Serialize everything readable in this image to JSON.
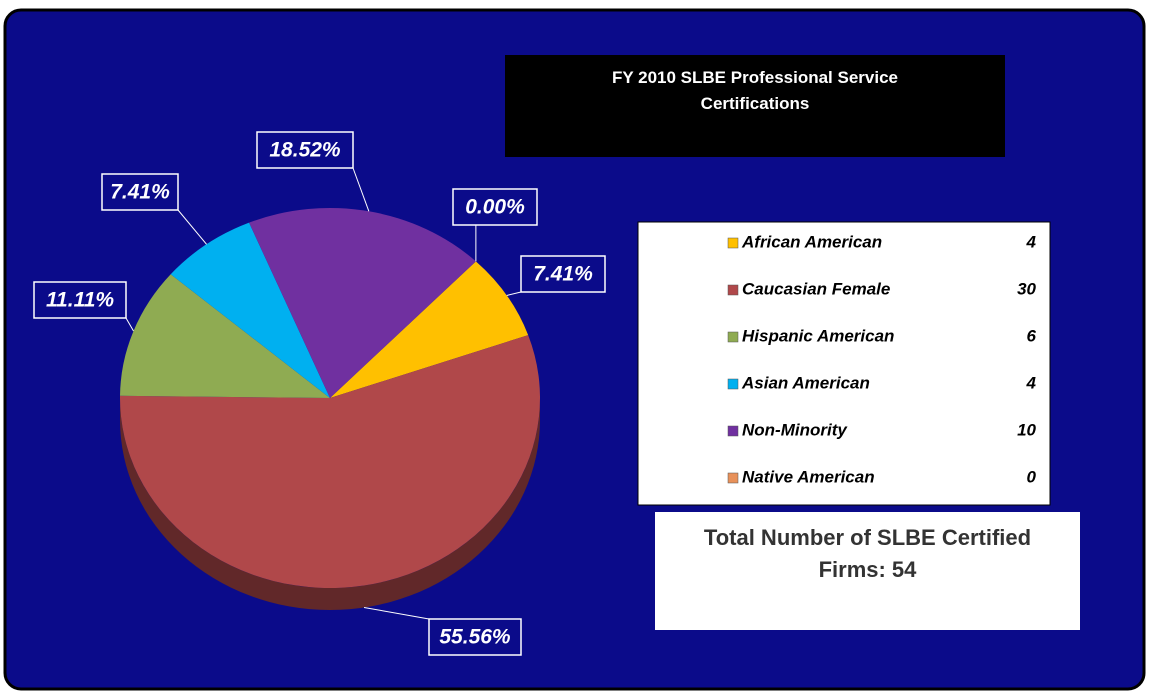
{
  "chart_data": {
    "type": "pie",
    "title": "FY 2010 SLBE Professional Service Certifications",
    "categories": [
      "African American",
      "Caucasian Female",
      "Hispanic American",
      "Asian American",
      "Non-Minority",
      "Native American"
    ],
    "values": [
      7.41,
      55.56,
      11.11,
      7.41,
      18.52,
      0.0
    ],
    "value_labels": [
      "7.41%",
      "55.56%",
      "11.11%",
      "7.41%",
      "18.52%",
      "0.00%"
    ],
    "counts": [
      4,
      30,
      6,
      4,
      10,
      0
    ],
    "colors": [
      "#ffc000",
      "#b0484a",
      "#8fab52",
      "#00b0f0",
      "#7030a0",
      "#e8915a"
    ],
    "annotation": "Total Number of SLBE Certified Firms: 54"
  }
}
